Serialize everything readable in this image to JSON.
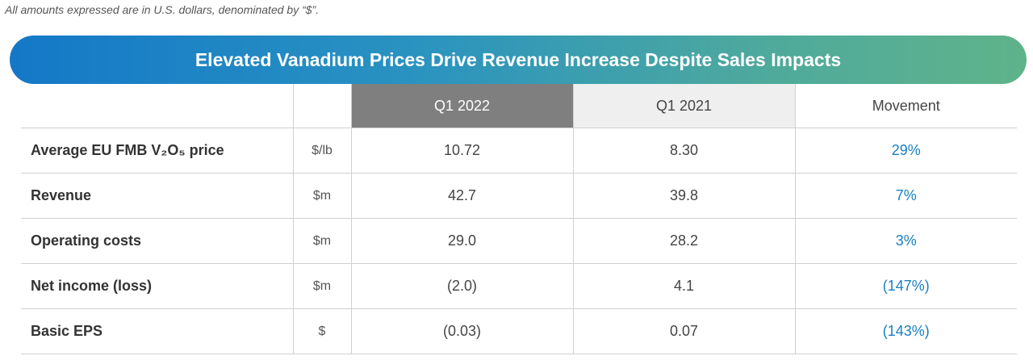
{
  "note": "All amounts expressed are in U.S. dollars, denominated by “$”.",
  "title": "Elevated Vanadium Prices Drive Revenue Increase Despite Sales Impacts",
  "table": {
    "header": [
      "Q1 2022",
      "Q1 2021",
      "Movement"
    ],
    "rows": [
      [
        "Average EU FMB V₂O₅ price",
        "$/lb",
        "10.72",
        "8.30",
        "29%"
      ],
      [
        "Revenue",
        "$m",
        "42.7",
        "39.8",
        "7%"
      ],
      [
        "Operating costs",
        "$m",
        "29.0",
        "28.2",
        "3%"
      ],
      [
        "Net income (loss)",
        "$m",
        "(2.0)",
        "4.1",
        "(147%)"
      ],
      [
        "Basic EPS",
        "$",
        "(0.03)",
        "0.07",
        "(143%)"
      ]
    ]
  }
}
